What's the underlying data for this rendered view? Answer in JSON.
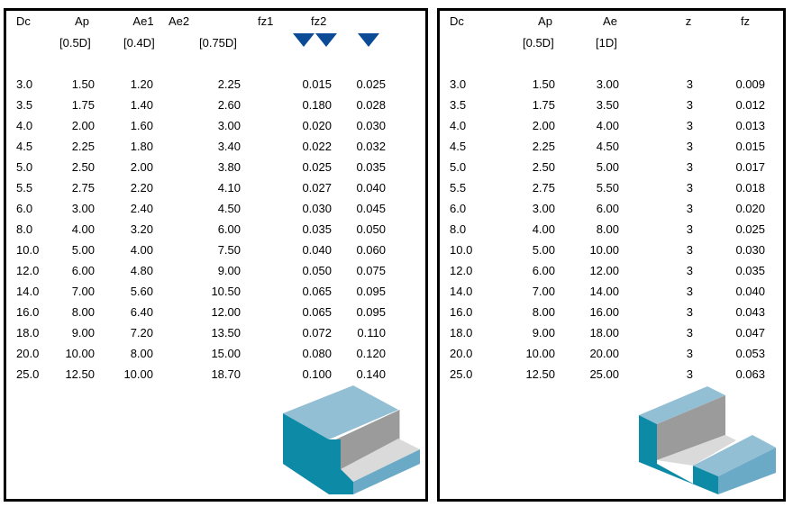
{
  "left_table": {
    "headers": [
      "Dc",
      "Ap",
      "Ae1",
      "Ae2",
      "fz1",
      "fz2"
    ],
    "subheaders": {
      "Ap": "[0.5D]",
      "Ae1": "[0.4D]",
      "Ae2": "[0.75D]"
    },
    "triangle_color": "#0b4a96",
    "rows": [
      [
        "3.0",
        "1.50",
        "1.20",
        "2.25",
        "0.015",
        "0.025"
      ],
      [
        "3.5",
        "1.75",
        "1.40",
        "2.60",
        "0.180",
        "0.028"
      ],
      [
        "4.0",
        "2.00",
        "1.60",
        "3.00",
        "0.020",
        "0.030"
      ],
      [
        "4.5",
        "2.25",
        "1.80",
        "3.40",
        "0.022",
        "0.032"
      ],
      [
        "5.0",
        "2.50",
        "2.00",
        "3.80",
        "0.025",
        "0.035"
      ],
      [
        "5.5",
        "2.75",
        "2.20",
        "4.10",
        "0.027",
        "0.040"
      ],
      [
        "6.0",
        "3.00",
        "2.40",
        "4.50",
        "0.030",
        "0.045"
      ],
      [
        "8.0",
        "4.00",
        "3.20",
        "6.00",
        "0.035",
        "0.050"
      ],
      [
        "10.0",
        "5.00",
        "4.00",
        "7.50",
        "0.040",
        "0.060"
      ],
      [
        "12.0",
        "6.00",
        "4.80",
        "9.00",
        "0.050",
        "0.075"
      ],
      [
        "14.0",
        "7.00",
        "5.60",
        "10.50",
        "0.065",
        "0.095"
      ],
      [
        "16.0",
        "8.00",
        "6.40",
        "12.00",
        "0.065",
        "0.095"
      ],
      [
        "18.0",
        "9.00",
        "7.20",
        "13.50",
        "0.072",
        "0.110"
      ],
      [
        "20.0",
        "10.00",
        "8.00",
        "15.00",
        "0.080",
        "0.120"
      ],
      [
        "25.0",
        "12.50",
        "10.00",
        "18.70",
        "0.100",
        "0.140"
      ]
    ]
  },
  "right_table": {
    "headers": [
      "Dc",
      "Ap",
      "Ae",
      "z",
      "fz"
    ],
    "subheaders": {
      "Ap": "[0.5D]",
      "Ae": "[1D]"
    },
    "rows": [
      [
        "3.0",
        "1.50",
        "3.00",
        "3",
        "0.009"
      ],
      [
        "3.5",
        "1.75",
        "3.50",
        "3",
        "0.012"
      ],
      [
        "4.0",
        "2.00",
        "4.00",
        "3",
        "0.013"
      ],
      [
        "4.5",
        "2.25",
        "4.50",
        "3",
        "0.015"
      ],
      [
        "5.0",
        "2.50",
        "5.00",
        "3",
        "0.017"
      ],
      [
        "5.5",
        "2.75",
        "5.50",
        "3",
        "0.018"
      ],
      [
        "6.0",
        "3.00",
        "6.00",
        "3",
        "0.020"
      ],
      [
        "8.0",
        "4.00",
        "8.00",
        "3",
        "0.025"
      ],
      [
        "10.0",
        "5.00",
        "10.00",
        "3",
        "0.030"
      ],
      [
        "12.0",
        "6.00",
        "12.00",
        "3",
        "0.035"
      ],
      [
        "14.0",
        "7.00",
        "14.00",
        "3",
        "0.040"
      ],
      [
        "16.0",
        "8.00",
        "16.00",
        "3",
        "0.043"
      ],
      [
        "18.0",
        "9.00",
        "18.00",
        "3",
        "0.047"
      ],
      [
        "20.0",
        "10.00",
        "20.00",
        "3",
        "0.053"
      ],
      [
        "25.0",
        "12.50",
        "25.00",
        "3",
        "0.063"
      ]
    ]
  }
}
